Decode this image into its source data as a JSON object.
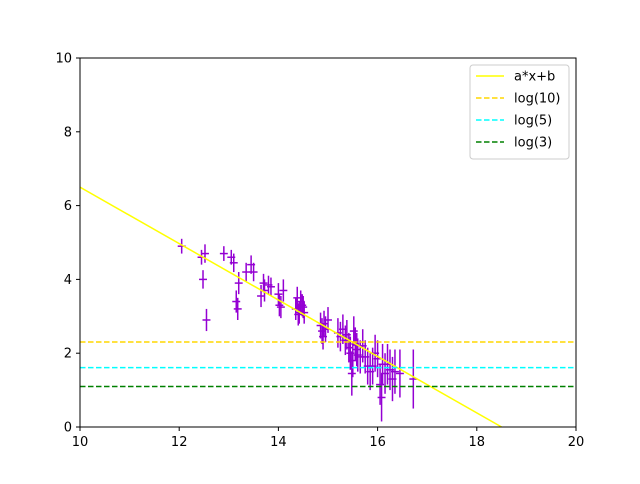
{
  "chart_data": {
    "type": "scatter",
    "xlim": [
      10,
      20
    ],
    "ylim": [
      0,
      10
    ],
    "x_ticks": [
      "10",
      "12",
      "14",
      "16",
      "18",
      "20"
    ],
    "y_ticks": [
      "0",
      "2",
      "4",
      "6",
      "8",
      "10"
    ],
    "grid": false,
    "legend_position": "top-right",
    "lines": [
      {
        "name": "a*x+b",
        "kind": "fit",
        "x": [
          10,
          18.5
        ],
        "y": [
          6.5,
          0
        ],
        "color": "#ffff00",
        "style": "solid"
      },
      {
        "name": "log(10)",
        "kind": "hline",
        "y": 2.303,
        "color": "#ffd700",
        "style": "dashed"
      },
      {
        "name": "log(5)",
        "kind": "hline",
        "y": 1.609,
        "color": "#00ffff",
        "style": "dashed"
      },
      {
        "name": "log(3)",
        "kind": "hline",
        "y": 1.099,
        "color": "#008000",
        "style": "dashed"
      }
    ],
    "errorbar_series": {
      "color": "#9400d3",
      "x": [
        12.05,
        12.45,
        12.48,
        12.52,
        12.55,
        12.9,
        13.05,
        13.1,
        13.15,
        13.18,
        13.2,
        13.35,
        13.45,
        13.5,
        13.65,
        13.7,
        13.72,
        13.8,
        13.85,
        14.0,
        14.02,
        14.05,
        14.1,
        14.35,
        14.38,
        14.4,
        14.42,
        14.45,
        14.48,
        14.5,
        14.52,
        14.85,
        14.88,
        14.9,
        14.92,
        14.95,
        15.0,
        15.2,
        15.25,
        15.3,
        15.35,
        15.38,
        15.42,
        15.45,
        15.48,
        15.5,
        15.52,
        15.55,
        15.58,
        15.6,
        15.65,
        15.7,
        15.75,
        15.8,
        15.85,
        15.9,
        15.95,
        16.0,
        16.05,
        16.08,
        16.1,
        16.15,
        16.2,
        16.25,
        16.3,
        16.35,
        16.45,
        16.72
      ],
      "y": [
        4.9,
        4.6,
        4.0,
        4.7,
        2.9,
        4.7,
        4.6,
        4.45,
        3.4,
        3.2,
        3.9,
        4.2,
        4.4,
        4.2,
        3.55,
        3.9,
        3.7,
        3.85,
        3.8,
        3.6,
        3.3,
        3.25,
        3.7,
        3.2,
        3.5,
        3.05,
        3.1,
        3.4,
        3.3,
        3.25,
        3.1,
        2.75,
        2.6,
        2.45,
        2.8,
        2.65,
        2.9,
        2.55,
        2.45,
        2.65,
        2.35,
        2.5,
        2.15,
        2.0,
        1.45,
        1.8,
        2.6,
        2.25,
        2.1,
        1.95,
        1.9,
        2.2,
        1.9,
        1.65,
        1.5,
        1.65,
        2.0,
        1.85,
        1.15,
        0.8,
        1.7,
        1.45,
        1.7,
        1.55,
        1.3,
        1.5,
        1.45,
        1.3
      ],
      "yerr": [
        0.2,
        0.2,
        0.25,
        0.25,
        0.3,
        0.2,
        0.2,
        0.25,
        0.3,
        0.3,
        0.3,
        0.25,
        0.25,
        0.25,
        0.3,
        0.25,
        0.3,
        0.25,
        0.25,
        0.3,
        0.3,
        0.3,
        0.3,
        0.3,
        0.3,
        0.3,
        0.3,
        0.3,
        0.3,
        0.3,
        0.3,
        0.35,
        0.35,
        0.35,
        0.35,
        0.35,
        0.35,
        0.4,
        0.4,
        0.4,
        0.4,
        0.4,
        0.4,
        0.45,
        0.6,
        0.45,
        0.4,
        0.45,
        0.45,
        0.45,
        0.45,
        0.45,
        0.45,
        0.5,
        0.5,
        0.5,
        0.5,
        0.5,
        0.55,
        0.65,
        0.55,
        0.55,
        0.55,
        0.55,
        0.6,
        0.6,
        0.65,
        0.8
      ],
      "xerr": [
        0.08,
        0.08,
        0.08,
        0.08,
        0.08,
        0.08,
        0.08,
        0.08,
        0.08,
        0.08,
        0.08,
        0.08,
        0.08,
        0.08,
        0.08,
        0.08,
        0.08,
        0.08,
        0.08,
        0.08,
        0.08,
        0.08,
        0.08,
        0.08,
        0.08,
        0.08,
        0.08,
        0.08,
        0.08,
        0.08,
        0.08,
        0.08,
        0.08,
        0.08,
        0.08,
        0.08,
        0.08,
        0.08,
        0.08,
        0.08,
        0.08,
        0.08,
        0.08,
        0.08,
        0.08,
        0.08,
        0.08,
        0.08,
        0.08,
        0.08,
        0.08,
        0.08,
        0.08,
        0.08,
        0.08,
        0.08,
        0.08,
        0.08,
        0.08,
        0.08,
        0.08,
        0.08,
        0.08,
        0.08,
        0.08,
        0.08,
        0.08,
        0.08
      ]
    }
  }
}
